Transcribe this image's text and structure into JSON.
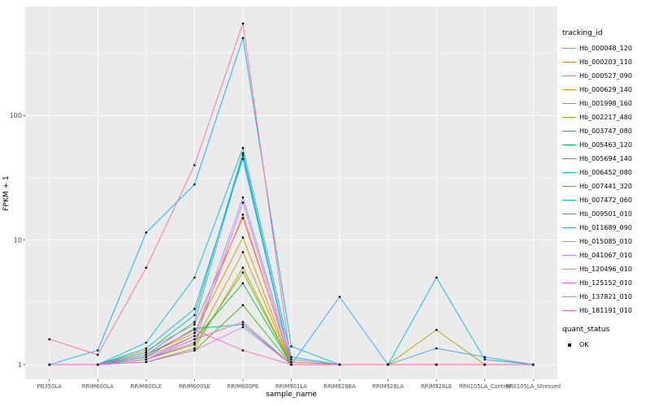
{
  "figure": {
    "bg": "#FFFFFF",
    "panel_bg": "#EBEBEB",
    "grid_color": "#FFFFFF",
    "tick_label_color": "#4D4D4D",
    "xlabel": "sample_name",
    "ylabel": "FPKM + 1",
    "y_ticks": [
      1,
      10,
      100
    ],
    "legend": {
      "tracking_title": "tracking_id",
      "quant_title": "quant_status",
      "quant_items": [
        {
          "label": "OK",
          "glyph": "black-point"
        }
      ]
    }
  },
  "chart_data": {
    "type": "line",
    "title": "",
    "xlabel": "sample_name",
    "ylabel": "FPKM + 1",
    "yscale": "log10",
    "ylim": [
      0.76,
      750
    ],
    "grid": true,
    "legend_position": "right",
    "point_marker": {
      "shape": "point",
      "color": "#000000",
      "meaning": "quant_status OK"
    },
    "categories": [
      "PB350LA",
      "RRIM600LA",
      "RRIM600LE",
      "RRIM600SE",
      "RRIM600PE",
      "RRIM901LA",
      "RRIM928BA",
      "RRIM928LA",
      "RRIM928LE",
      "RRII105LA_Control",
      "RRII105LA_Stressed"
    ],
    "series": [
      {
        "name": "Hb_000048_120",
        "color": "#F8766D",
        "values": [
          1,
          1,
          1.15,
          1.7,
          16,
          1,
          1,
          1,
          1,
          1,
          1
        ]
      },
      {
        "name": "Hb_000203_110",
        "color": "#EA8331",
        "values": [
          1,
          1,
          1.3,
          2.1,
          15,
          1.05,
          1,
          1,
          1,
          1,
          1
        ]
      },
      {
        "name": "Hb_000527_090",
        "color": "#D89000",
        "values": [
          1,
          1,
          1.2,
          1.8,
          10.5,
          1,
          1,
          1,
          1,
          1,
          1
        ]
      },
      {
        "name": "Hb_000629_140",
        "color": "#C09B00",
        "values": [
          1,
          1,
          1.1,
          1.5,
          8,
          1,
          1,
          1,
          1,
          1,
          1
        ]
      },
      {
        "name": "Hb_001998_160",
        "color": "#A3A500",
        "values": [
          1,
          1,
          1.05,
          1.35,
          6,
          1,
          1,
          1,
          1.9,
          1,
          1
        ]
      },
      {
        "name": "Hb_002217_480",
        "color": "#7CAE00",
        "values": [
          1,
          1,
          1.1,
          1.45,
          5.5,
          1,
          1,
          1,
          1,
          1,
          1
        ]
      },
      {
        "name": "Hb_003747_080",
        "color": "#39B600",
        "values": [
          1,
          1,
          1.05,
          1.3,
          3,
          1,
          1,
          1,
          1,
          1,
          1
        ]
      },
      {
        "name": "Hb_005463_120",
        "color": "#00BB4E",
        "values": [
          1,
          1,
          1.1,
          1.6,
          4.5,
          1,
          1,
          1,
          1,
          1,
          1
        ]
      },
      {
        "name": "Hb_005694_140",
        "color": "#00BF7D",
        "values": [
          1,
          1,
          1.15,
          1.95,
          2.1,
          1,
          1,
          1,
          1,
          1,
          1
        ]
      },
      {
        "name": "Hb_006452_080",
        "color": "#00C1A3",
        "values": [
          1,
          1,
          1.25,
          2.5,
          50,
          1,
          1,
          1,
          1,
          1,
          1
        ]
      },
      {
        "name": "Hb_007441_320",
        "color": "#00BFC4",
        "values": [
          1,
          1,
          1.5,
          5,
          55,
          1.15,
          1,
          1,
          1,
          1,
          1
        ]
      },
      {
        "name": "Hb_007472_060",
        "color": "#00BAE0",
        "values": [
          1,
          1,
          1.35,
          2.8,
          45,
          1,
          1,
          1,
          5,
          1.1,
          1
        ]
      },
      {
        "name": "Hb_009501_010",
        "color": "#00B0F6",
        "values": [
          1,
          1.3,
          11.5,
          28,
          420,
          1.4,
          1,
          1,
          1,
          1,
          1
        ]
      },
      {
        "name": "Hb_011689_090",
        "color": "#35A2FF",
        "values": [
          1,
          1,
          1.2,
          2.2,
          48,
          1,
          3.5,
          1,
          1.35,
          1.15,
          1
        ]
      },
      {
        "name": "Hb_015085_010",
        "color": "#9590FF",
        "values": [
          1,
          1,
          1.1,
          1.7,
          22,
          1.1,
          1,
          1,
          1,
          1,
          1
        ]
      },
      {
        "name": "Hb_041067_010",
        "color": "#C77CFF",
        "values": [
          1,
          1,
          1.1,
          1.5,
          20,
          1,
          1,
          1,
          1,
          1,
          1
        ]
      },
      {
        "name": "Hb_120496_010",
        "color": "#E76BF3",
        "values": [
          1,
          1,
          1.05,
          1.3,
          2,
          1,
          1,
          1,
          1,
          1,
          1
        ]
      },
      {
        "name": "Hb_125152_010",
        "color": "#FA62DB",
        "values": [
          1,
          1,
          1.1,
          1.6,
          2.2,
          1,
          1,
          1,
          1,
          1,
          1
        ]
      },
      {
        "name": "Hb_137821_010",
        "color": "#FF62BC",
        "values": [
          1,
          1,
          1.2,
          1.9,
          1.3,
          1,
          1,
          1,
          1,
          1,
          1
        ]
      },
      {
        "name": "Hb_181191_010",
        "color": "#FF6A98",
        "values": [
          1.6,
          1.2,
          6,
          40,
          550,
          1,
          1,
          1,
          1,
          1,
          1
        ]
      }
    ]
  }
}
